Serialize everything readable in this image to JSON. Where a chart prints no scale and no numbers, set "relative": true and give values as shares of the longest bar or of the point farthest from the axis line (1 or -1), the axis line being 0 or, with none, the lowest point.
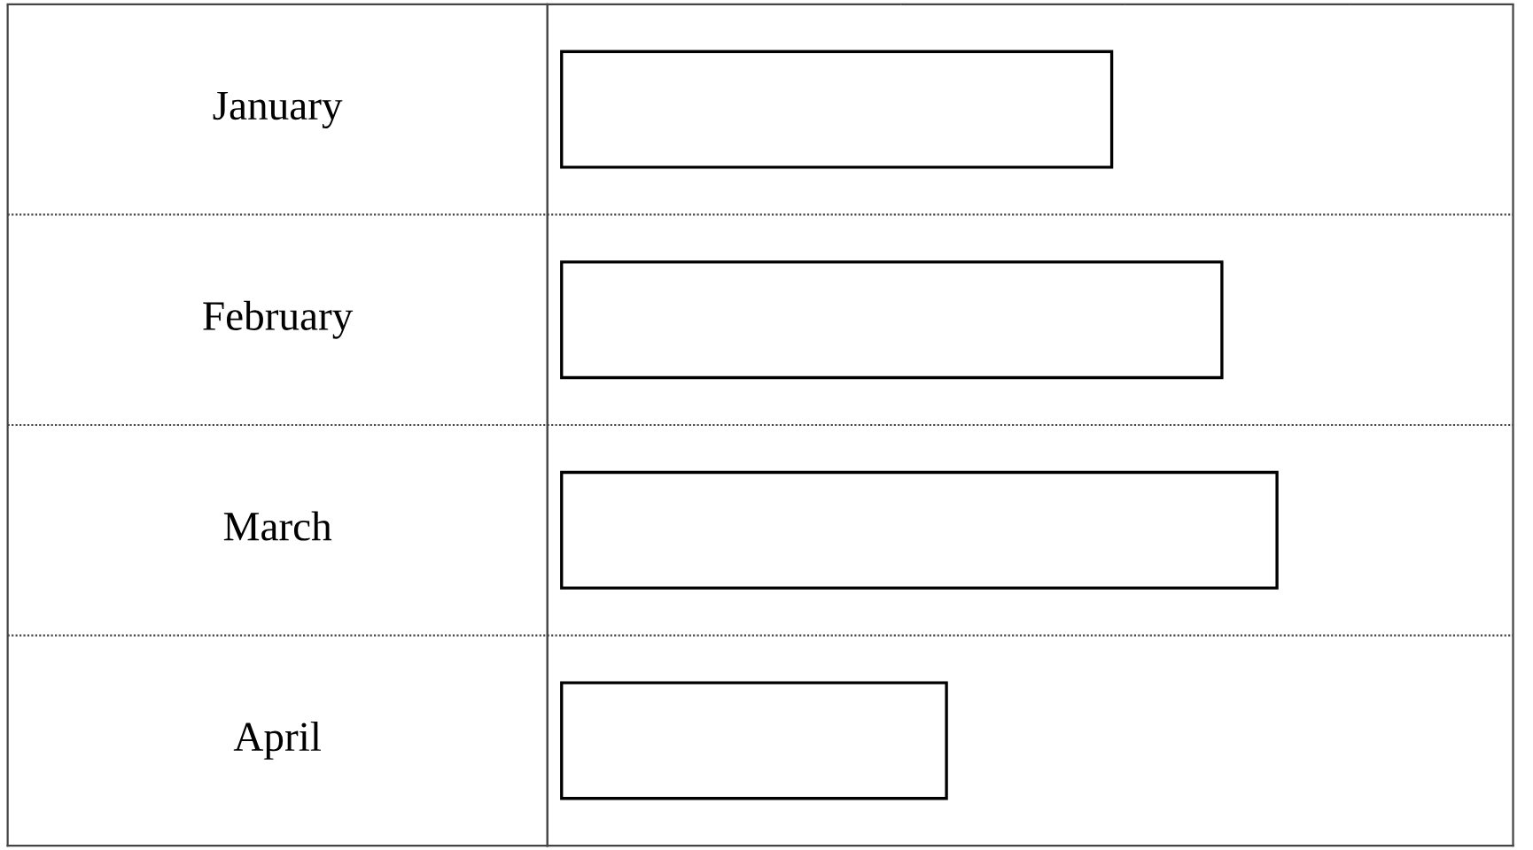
{
  "chart_data": {
    "type": "bar",
    "orientation": "horizontal",
    "relative": true,
    "categories": [
      "January",
      "February",
      "March",
      "April"
    ],
    "values": [
      0.769,
      0.923,
      1,
      0.538
    ],
    "color": "#ffffff",
    "grid": "y"
  }
}
